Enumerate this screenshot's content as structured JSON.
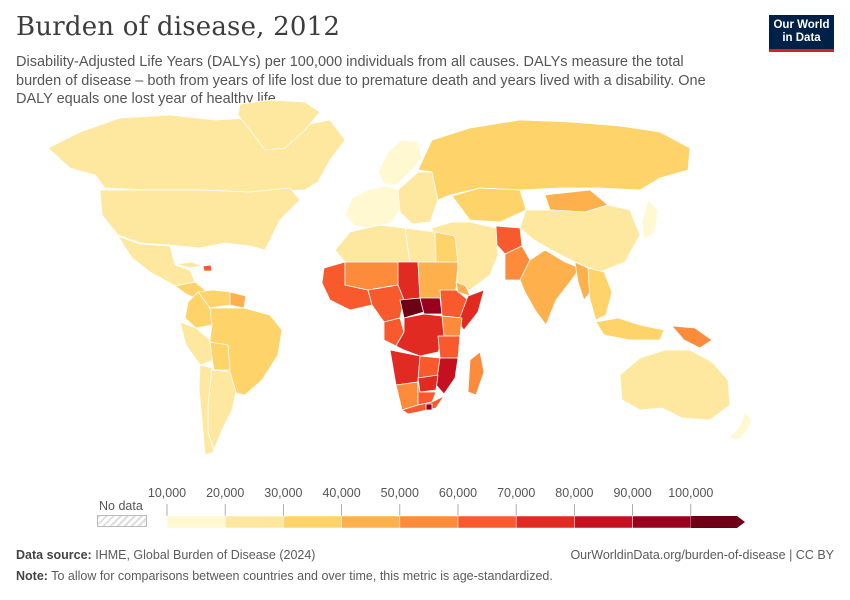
{
  "header": {
    "title": "Burden of disease, 2012",
    "subtitle": "Disability-Adjusted Life Years (DALYs) per 100,000 individuals from all causes. DALYs measure the total burden of disease – both from years of life lost due to premature death and years lived with a disability. One DALY equals one lost year of healthy life.",
    "logo_line1": "Our World",
    "logo_line2": "in Data"
  },
  "legend": {
    "no_data_label": "No data",
    "ticks": [
      "10,000",
      "20,000",
      "30,000",
      "40,000",
      "50,000",
      "60,000",
      "70,000",
      "80,000",
      "90,000",
      "100,000"
    ],
    "colors": [
      "#fff8d0",
      "#fee8a0",
      "#fdd36a",
      "#fdb04c",
      "#fc8c3b",
      "#f85a2e",
      "#e12a22",
      "#c4101f",
      "#98001d",
      "#6c0015"
    ]
  },
  "footer": {
    "source_label": "Data source:",
    "source_text": "IHME, Global Burden of Disease (2024)",
    "url_text": "OurWorldinData.org/burden-of-disease | CC BY",
    "note_label": "Note:",
    "note_text": "To allow for comparisons between countries and over time, this metric is age-standardized."
  },
  "map_data": {
    "regions": [
      {
        "name": "Canada",
        "bin": 1
      },
      {
        "name": "Greenland",
        "bin": 1
      },
      {
        "name": "United States",
        "bin": 1
      },
      {
        "name": "Mexico",
        "bin": 1
      },
      {
        "name": "Central America",
        "bin": 2
      },
      {
        "name": "Haiti",
        "bin": 5
      },
      {
        "name": "Cuba",
        "bin": 1
      },
      {
        "name": "Venezuela",
        "bin": 2
      },
      {
        "name": "Guyana",
        "bin": 3
      },
      {
        "name": "Colombia",
        "bin": 2
      },
      {
        "name": "Brazil",
        "bin": 2
      },
      {
        "name": "Peru",
        "bin": 1
      },
      {
        "name": "Bolivia",
        "bin": 2
      },
      {
        "name": "Argentina",
        "bin": 1
      },
      {
        "name": "Chile",
        "bin": 1
      },
      {
        "name": "Western Europe",
        "bin": 0
      },
      {
        "name": "Scandinavia",
        "bin": 0
      },
      {
        "name": "Eastern Europe",
        "bin": 1
      },
      {
        "name": "Russia",
        "bin": 2
      },
      {
        "name": "Kazakhstan",
        "bin": 2
      },
      {
        "name": "Mongolia",
        "bin": 3
      },
      {
        "name": "China",
        "bin": 1
      },
      {
        "name": "Japan",
        "bin": 0
      },
      {
        "name": "Middle East",
        "bin": 1
      },
      {
        "name": "Afghanistan",
        "bin": 5
      },
      {
        "name": "Pakistan",
        "bin": 4
      },
      {
        "name": "India",
        "bin": 3
      },
      {
        "name": "Myanmar",
        "bin": 3
      },
      {
        "name": "Southeast Asia",
        "bin": 2
      },
      {
        "name": "Indonesia",
        "bin": 2
      },
      {
        "name": "Papua New Guinea",
        "bin": 4
      },
      {
        "name": "Australia",
        "bin": 1
      },
      {
        "name": "New Zealand",
        "bin": 0
      },
      {
        "name": "North Africa",
        "bin": 1
      },
      {
        "name": "Libya",
        "bin": 1
      },
      {
        "name": "Egypt",
        "bin": 2
      },
      {
        "name": "West Africa coast",
        "bin": 5
      },
      {
        "name": "Mali & Niger",
        "bin": 4
      },
      {
        "name": "Chad",
        "bin": 6
      },
      {
        "name": "Sudan",
        "bin": 3
      },
      {
        "name": "Nigeria & Cameroon",
        "bin": 5
      },
      {
        "name": "Central African Republic",
        "bin": 9
      },
      {
        "name": "South Sudan",
        "bin": 8
      },
      {
        "name": "Ethiopia",
        "bin": 5
      },
      {
        "name": "Somalia",
        "bin": 6
      },
      {
        "name": "Horn of Africa",
        "bin": 3
      },
      {
        "name": "Kenya",
        "bin": 4
      },
      {
        "name": "DR Congo",
        "bin": 6
      },
      {
        "name": "Congo & Gabon",
        "bin": 5
      },
      {
        "name": "Tanzania",
        "bin": 5
      },
      {
        "name": "Angola",
        "bin": 6
      },
      {
        "name": "Zambia",
        "bin": 5
      },
      {
        "name": "Mozambique",
        "bin": 7
      },
      {
        "name": "Zimbabwe",
        "bin": 6
      },
      {
        "name": "Namibia",
        "bin": 4
      },
      {
        "name": "Botswana",
        "bin": 5
      },
      {
        "name": "South Africa",
        "bin": 5
      },
      {
        "name": "Lesotho",
        "bin": 8
      },
      {
        "name": "Madagascar",
        "bin": 4
      }
    ]
  }
}
